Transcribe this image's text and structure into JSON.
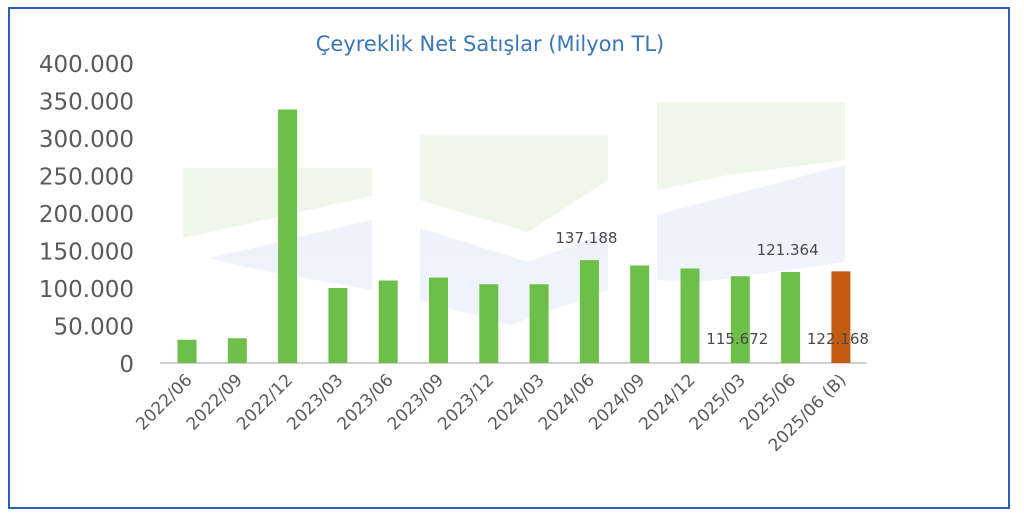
{
  "chart_data": {
    "type": "bar",
    "title": "Çeyreklik Net Satışlar (Milyon TL)",
    "xlabel": "",
    "ylabel": "",
    "ylim": [
      0,
      400000
    ],
    "yticks": [
      "0",
      "50.000",
      "100.000",
      "150.000",
      "200.000",
      "250.000",
      "300.000",
      "350.000",
      "400.000"
    ],
    "ytick_values": [
      0,
      50000,
      100000,
      150000,
      200000,
      250000,
      300000,
      350000,
      400000
    ],
    "categories": [
      "2022/06",
      "2022/09",
      "2022/12",
      "2023/03",
      "2023/06",
      "2023/09",
      "2023/12",
      "2024/03",
      "2024/06",
      "2024/09",
      "2024/12",
      "2025/03",
      "2025/06",
      "2025/06 (B)"
    ],
    "values": [
      31000,
      33000,
      338000,
      100000,
      110000,
      114000,
      105000,
      105000,
      137188,
      130000,
      126000,
      115672,
      121364,
      122168
    ],
    "data_labels": [
      {
        "index": 8,
        "text": "137.188",
        "position": "above"
      },
      {
        "index": 11,
        "text": "115.672",
        "position": "inside-bottom"
      },
      {
        "index": 12,
        "text": "121.364",
        "position": "above"
      },
      {
        "index": 13,
        "text": "122.168",
        "position": "inside-bottom"
      }
    ],
    "grid": false,
    "legend": "none",
    "colors": {
      "actual": "#6cc04a",
      "estimate": "#c55a11",
      "title": "#3a76b8",
      "border": "#2a5fb8"
    }
  }
}
